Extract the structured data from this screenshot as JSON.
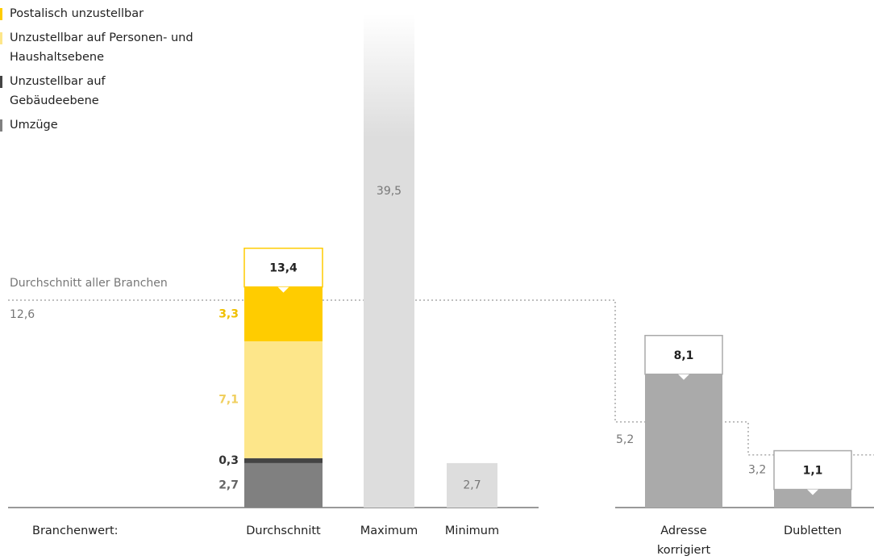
{
  "chart_data": {
    "type": "bar",
    "row_label": "Branchenwert:",
    "categories": [
      "Durchschnitt"
    ],
    "series": [
      {
        "name": "Postalisch unzustellbar",
        "color": "#ffcc00",
        "values": [
          3.3
        ],
        "value_labels": [
          "3,3"
        ]
      },
      {
        "name": "Unzustellbar auf Personen- und Haushaltsebene",
        "color": "#fde68a",
        "values": [
          7.1
        ],
        "value_labels": [
          "7,1"
        ]
      },
      {
        "name": "Unzustellbar auf Gebäudeebene",
        "color": "#444444",
        "values": [
          0.3
        ],
        "value_labels": [
          "0,3"
        ]
      },
      {
        "name": "Umzüge",
        "color": "#808080",
        "values": [
          2.7
        ],
        "value_labels": [
          "2,7"
        ]
      }
    ],
    "total": 13.4,
    "total_label": "13,4",
    "range_bars": {
      "categories": [
        "Maximum",
        "Minimum"
      ],
      "values": [
        39.5,
        2.7
      ],
      "value_labels": [
        "39,5",
        "2,7"
      ],
      "color": "#dddddd"
    },
    "benchmark": {
      "label": "Durchschnitt aller Branchen",
      "values": [
        12.6,
        5.2,
        3.2
      ],
      "value_labels": [
        "12,6",
        "5,2",
        "3,2"
      ]
    },
    "result_bars": {
      "categories": [
        "Adresse korrigiert",
        "Dubletten"
      ],
      "values": [
        8.1,
        1.1
      ],
      "value_labels": [
        "8,1",
        "1,1"
      ],
      "color": "#aaaaaa"
    },
    "ylim": [
      0,
      30
    ]
  }
}
